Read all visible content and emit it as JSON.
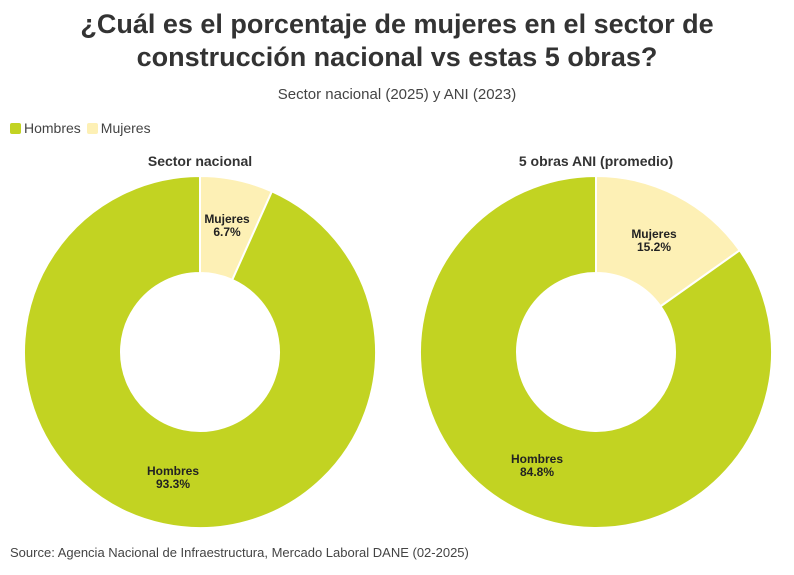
{
  "title_line1": "¿Cuál es el porcentaje de mujeres en el sector de",
  "title_line2": "construcción nacional vs estas 5 obras?",
  "subtitle": "Sector nacional (2025) y ANI (2023)",
  "legend": [
    {
      "label": "Hombres",
      "color": "#c2d322"
    },
    {
      "label": "Mujeres",
      "color": "#fdf0b5"
    }
  ],
  "source": "Source: Agencia Nacional de Infraestructura, Mercado Laboral DANE (02-2025)",
  "chart_data": [
    {
      "type": "pie",
      "donut": true,
      "title": "Sector nacional",
      "slices": [
        {
          "label": "Mujeres",
          "value": 6.7,
          "display": "6.7%",
          "color": "#fdf0b5"
        },
        {
          "label": "Hombres",
          "value": 93.3,
          "display": "93.3%",
          "color": "#c2d322"
        }
      ]
    },
    {
      "type": "pie",
      "donut": true,
      "title": "5 obras ANI (promedio)",
      "slices": [
        {
          "label": "Mujeres",
          "value": 15.2,
          "display": "15.2%",
          "color": "#fdf0b5"
        },
        {
          "label": "Hombres",
          "value": 84.8,
          "display": "84.8%",
          "color": "#c2d322"
        }
      ]
    }
  ]
}
